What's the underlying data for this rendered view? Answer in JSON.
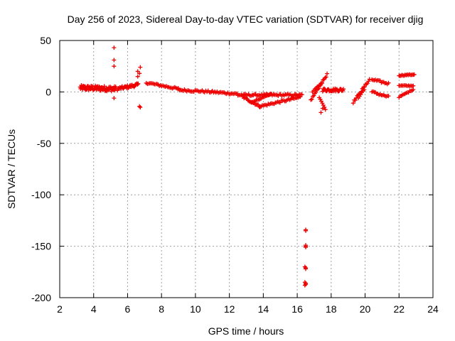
{
  "colors": {
    "series": "#ee0000",
    "grid": "#a0a0a0",
    "axis": "#000000"
  },
  "chart_data": {
    "type": "scatter",
    "title": "Day 256 of 2023, Sidereal Day-to-day VTEC variation (SDTVAR) for receiver djig",
    "xlabel": "GPS time / hours",
    "ylabel": "SDTVAR / TECUs",
    "xlim": [
      2,
      24
    ],
    "ylim": [
      -200,
      50
    ],
    "grid": true,
    "x_ticks": [
      "2",
      "4",
      "6",
      "8",
      "10",
      "12",
      "14",
      "16",
      "18",
      "20",
      "22",
      "24"
    ],
    "y_ticks": [
      "50",
      "0",
      "-50",
      "-100",
      "-150",
      "-200"
    ],
    "marker": "plus",
    "series": [
      {
        "name": "SDTVAR",
        "segments": [
          {
            "x0": 3.2,
            "x1": 5.3,
            "y0": 4,
            "y1": 3,
            "step": 0.05,
            "spread": 5
          },
          {
            "x0": 5.4,
            "x1": 6.6,
            "y0": 3,
            "y1": 7,
            "step": 0.07,
            "spread": 3
          },
          {
            "x0": 7.1,
            "x1": 9.0,
            "y0": 9,
            "y1": 3,
            "step": 0.07,
            "spread": 2
          },
          {
            "x0": 9.0,
            "x1": 11.0,
            "y0": 2,
            "y1": 0,
            "step": 0.07,
            "spread": 2
          },
          {
            "x0": 11.0,
            "x1": 12.5,
            "y0": 0,
            "y1": -2,
            "step": 0.07,
            "spread": 2
          },
          {
            "x0": 12.5,
            "x1": 16.3,
            "y0": -3,
            "y1": -3,
            "step": 0.07,
            "spread": 2
          },
          {
            "x0": 12.8,
            "x1": 13.8,
            "y0": -5,
            "y1": -14,
            "step": 0.06,
            "spread": 2
          },
          {
            "x0": 13.8,
            "x1": 16.2,
            "y0": -14,
            "y1": -5,
            "step": 0.07,
            "spread": 2
          },
          {
            "x0": 13.3,
            "x1": 14.5,
            "y0": -10,
            "y1": -2,
            "step": 0.07,
            "spread": 1
          },
          {
            "x0": 16.8,
            "x1": 17.8,
            "y0": -8,
            "y1": 18,
            "step": 0.06,
            "spread": 2
          },
          {
            "x0": 16.9,
            "x1": 17.5,
            "y0": 0,
            "y1": 10,
            "step": 0.07,
            "spread": 1
          },
          {
            "x0": 17.5,
            "x1": 18.7,
            "y0": 2,
            "y1": 2,
            "step": 0.07,
            "spread": 3
          },
          {
            "x0": 17.3,
            "x1": 17.7,
            "y0": -5,
            "y1": -18,
            "step": 0.06,
            "spread": 1
          },
          {
            "x0": 19.3,
            "x1": 20.3,
            "y0": -10,
            "y1": 13,
            "step": 0.06,
            "spread": 2
          },
          {
            "x0": 19.6,
            "x1": 20.0,
            "y0": -6,
            "y1": 4,
            "step": 0.07,
            "spread": 1
          },
          {
            "x0": 20.4,
            "x1": 21.4,
            "y0": 0,
            "y1": -5,
            "step": 0.07,
            "spread": 2
          },
          {
            "x0": 20.4,
            "x1": 21.4,
            "y0": 12,
            "y1": 8,
            "step": 0.07,
            "spread": 2
          },
          {
            "x0": 22.0,
            "x1": 22.9,
            "y0": 16,
            "y1": 17,
            "step": 0.06,
            "spread": 1
          },
          {
            "x0": 22.0,
            "x1": 22.9,
            "y0": 6,
            "y1": 6,
            "step": 0.07,
            "spread": 1
          },
          {
            "x0": 22.0,
            "x1": 22.9,
            "y0": -5,
            "y1": 3,
            "step": 0.07,
            "spread": 1
          }
        ],
        "points": [
          [
            5.2,
            43
          ],
          [
            5.2,
            31
          ],
          [
            5.2,
            25
          ],
          [
            5.2,
            -6
          ],
          [
            6.75,
            24
          ],
          [
            6.6,
            20
          ],
          [
            6.6,
            15
          ],
          [
            6.7,
            18
          ],
          [
            6.7,
            -14
          ],
          [
            6.75,
            -15
          ],
          [
            17.4,
            -20
          ],
          [
            17.5,
            -16
          ],
          [
            16.5,
            -134
          ],
          [
            16.5,
            -135
          ],
          [
            16.5,
            -149
          ],
          [
            16.5,
            -150
          ],
          [
            16.5,
            -151
          ],
          [
            16.45,
            -170
          ],
          [
            16.5,
            -171
          ],
          [
            16.5,
            -172
          ],
          [
            16.45,
            -185
          ],
          [
            16.5,
            -186
          ],
          [
            16.5,
            -187
          ],
          [
            16.45,
            -188
          ]
        ]
      }
    ]
  }
}
